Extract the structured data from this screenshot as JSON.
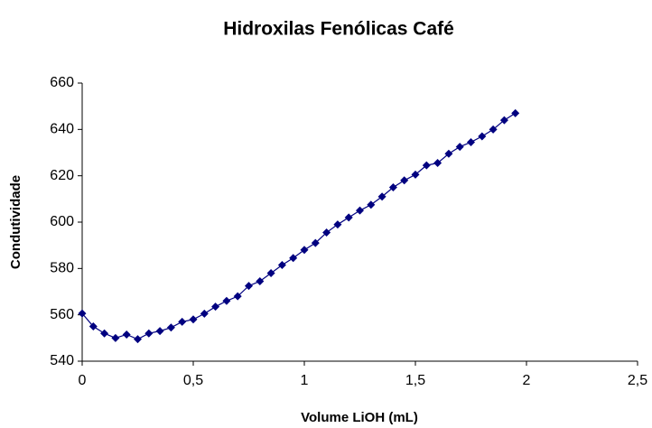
{
  "chart_data": {
    "type": "line",
    "title": "Hidroxilas Fenólicas Café",
    "xlabel": "Volume LiOH (mL)",
    "ylabel": "Condutividade",
    "x": [
      0,
      0.05,
      0.1,
      0.15,
      0.2,
      0.25,
      0.3,
      0.35,
      0.4,
      0.45,
      0.5,
      0.55,
      0.6,
      0.65,
      0.7,
      0.75,
      0.8,
      0.85,
      0.9,
      0.95,
      1.0,
      1.05,
      1.1,
      1.15,
      1.2,
      1.25,
      1.3,
      1.35,
      1.4,
      1.45,
      1.5,
      1.55,
      1.6,
      1.65,
      1.7,
      1.75,
      1.8,
      1.85,
      1.9,
      1.95
    ],
    "values": [
      560.6,
      555,
      552,
      550,
      551.5,
      549.5,
      552,
      553,
      554.5,
      557,
      558,
      560.5,
      563.5,
      566,
      568,
      572.5,
      574.5,
      578,
      581.5,
      584.5,
      588,
      591,
      595.5,
      599,
      602,
      605,
      607.5,
      611,
      615,
      618,
      620.5,
      624.5,
      625.5,
      629.5,
      632.5,
      634.5,
      637,
      640,
      644,
      647
    ],
    "color": "#000080",
    "xlim": [
      0,
      2.5
    ],
    "xticks": [
      0,
      {
        "value": 0.5,
        "label": "0,5"
      },
      1,
      {
        "value": 1.5,
        "label": "1,5"
      },
      2,
      {
        "value": 2.5,
        "label": "2,5"
      }
    ],
    "ylim": [
      540,
      660
    ],
    "yticks": [
      540,
      560,
      580,
      600,
      620,
      640,
      660
    ],
    "grid": false
  }
}
